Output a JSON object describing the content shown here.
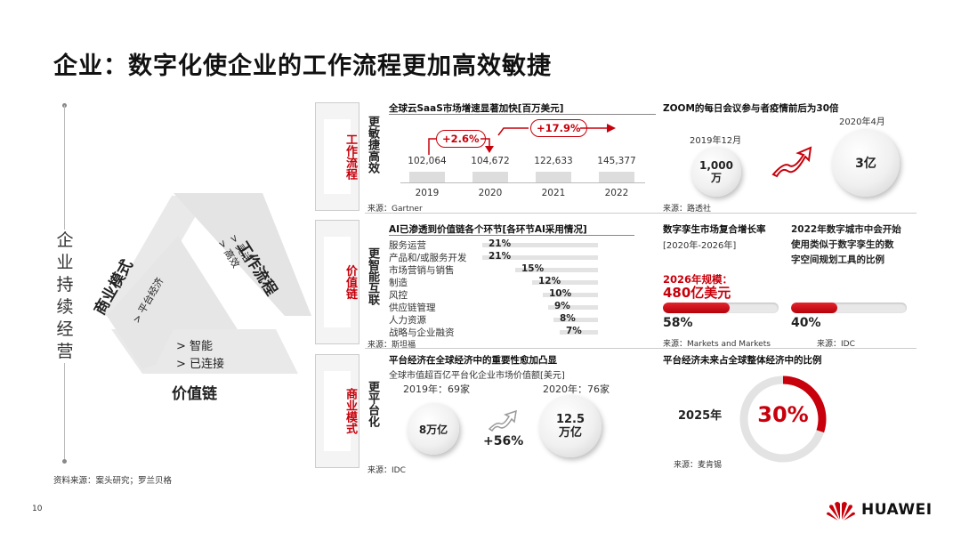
{
  "title": "企业：数字化使企业的工作流程更加高效敏捷",
  "side_label": "企业持续经营",
  "triangle": {
    "workflow_title": "工作流程",
    "workflow_items": [
      "> 灵活",
      "> 高效"
    ],
    "business_title": "商业模式",
    "business_items": [
      "> 平台经济"
    ],
    "value_title": "价值链",
    "value_items": [
      "> 智能",
      "> 已连接"
    ]
  },
  "source_left": "资料来源：案头研究；罗兰贝格",
  "page_number": "10",
  "logo_text": "HUAWEI",
  "colors": {
    "accent": "#c7000b"
  },
  "row1": {
    "label": "工作流程",
    "sub": "更敏捷高效",
    "saas": {
      "title": "全球云SaaS市场增速显著加快[百万美元]",
      "pill_a": "+2.6%",
      "pill_b": "+17.9%",
      "source": "来源：Gartner"
    },
    "zoom": {
      "title": "ZOOM的每日会议参与者疫情前后为30倍",
      "left_date": "2019年12月",
      "left_value": "1,000 万",
      "right_date": "2020年4月",
      "right_value": "3亿",
      "source": "来源：路透社"
    }
  },
  "row2": {
    "label": "价值链",
    "sub": "更智能互联",
    "ai": {
      "title": "AI已渗透到价值链各个环节[各环节AI采用情况]",
      "items": [
        {
          "label": "服务运营",
          "pct": "21%",
          "value": 21
        },
        {
          "label": "产品和/或服务开发",
          "pct": "21%",
          "value": 21
        },
        {
          "label": "市场营销与销售",
          "pct": "15%",
          "value": 15
        },
        {
          "label": "制造",
          "pct": "12%",
          "value": 12
        },
        {
          "label": "风控",
          "pct": "10%",
          "value": 10
        },
        {
          "label": "供应链管理",
          "pct": "9%",
          "value": 9
        },
        {
          "label": "人力资源",
          "pct": "8%",
          "value": 8
        },
        {
          "label": "战略与企业融资",
          "pct": "7%",
          "value": 7
        }
      ],
      "source": "来源：斯坦福"
    },
    "twin": {
      "title": "数字孪生市场复合增长率",
      "period": "[2020年-2026年]",
      "scale_label": "2026年规模：",
      "scale_value": "480亿美元",
      "pct": "58%",
      "value": 58,
      "source": "来源：Markets and Markets"
    },
    "city": {
      "title_lines": [
        "2022年数字城市中会开始",
        "使用类似于数字孪生的数",
        "字空间规划工具的比例"
      ],
      "pct": "40%",
      "value": 40,
      "source": "来源：IDC"
    }
  },
  "row3": {
    "label": "商业模式",
    "sub": "更平台化",
    "platform": {
      "title": "平台经济在全球经济中的重要性愈加凸显",
      "subtitle": "全球市值超百亿平台化企业市场价值额[美元]",
      "left_year": "2019年：69家",
      "right_year": "2020年：76家",
      "left_value": "8万亿",
      "right_value": "12.5 万亿",
      "growth": "+56%",
      "source": "来源：IDC"
    },
    "share": {
      "title": "平台经济未来占全球整体经济中的比例",
      "year": "2025年",
      "pct": "30%",
      "value": 30,
      "source": "来源：麦肯锡"
    }
  },
  "chart_data": {
    "type": "bar",
    "title": "全球云SaaS市场增速显著加快[百万美元]",
    "categories": [
      "2019",
      "2020",
      "2021",
      "2022"
    ],
    "values": [
      102064,
      104672,
      122633,
      145377
    ],
    "value_labels": [
      "102,064",
      "104,672",
      "122,633",
      "145,377"
    ]
  }
}
